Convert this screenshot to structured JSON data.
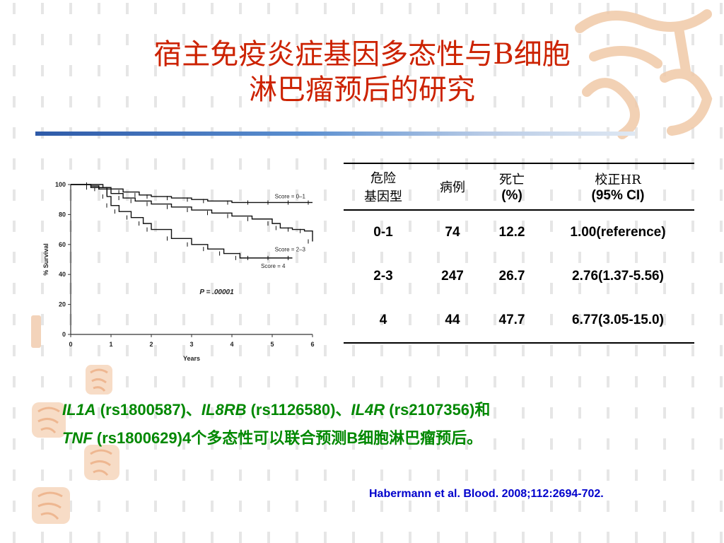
{
  "slide": {
    "title_line1": "宿主免疫炎症基因多态性与B细胞",
    "title_line2": "淋巴瘤预后的研究"
  },
  "chart_data": {
    "type": "line",
    "xlabel": "Years",
    "ylabel": "% Survival",
    "xlim": [
      0,
      6
    ],
    "ylim": [
      0,
      100
    ],
    "xticks": [
      0,
      1,
      2,
      3,
      4,
      5,
      6
    ],
    "yticks": [
      0,
      20,
      40,
      60,
      80,
      100
    ],
    "annotation": "P = .00001",
    "series": [
      {
        "name": "Score = 0–1",
        "x": [
          0,
          0.5,
          0.8,
          1.0,
          1.3,
          1.7,
          2.0,
          2.5,
          3.0,
          3.4,
          4.0,
          4.5,
          5.0,
          5.5,
          6.0
        ],
        "y": [
          100,
          100,
          98,
          97,
          95,
          93,
          92,
          91,
          90,
          89,
          88,
          88,
          88,
          88,
          88
        ]
      },
      {
        "name": "Score = 2–3",
        "x": [
          0,
          0.5,
          0.7,
          1.0,
          1.3,
          1.6,
          2.0,
          2.5,
          3.0,
          3.5,
          4.0,
          4.5,
          5.0,
          5.2,
          5.5,
          5.8,
          6.0
        ],
        "y": [
          100,
          99,
          97,
          94,
          91,
          89,
          87,
          85,
          83,
          81,
          79,
          77,
          74,
          71,
          70,
          69,
          62
        ]
      },
      {
        "name": "Score = 4",
        "x": [
          0,
          0.5,
          0.9,
          1.0,
          1.2,
          1.5,
          1.8,
          2.0,
          2.5,
          3.0,
          3.4,
          3.8,
          4.2,
          4.5,
          5.0,
          5.5
        ],
        "y": [
          100,
          98,
          92,
          86,
          82,
          78,
          74,
          70,
          64,
          60,
          57,
          54,
          51,
          51,
          51,
          51
        ]
      }
    ]
  },
  "table": {
    "headers": [
      {
        "line1": "危险",
        "line2": "基因型"
      },
      {
        "line1": "病例",
        "line2": ""
      },
      {
        "line1": "死亡",
        "line2": "(%)"
      },
      {
        "line1": "校正HR",
        "line2": "(95% CI)"
      }
    ],
    "rows": [
      [
        "0-1",
        "74",
        "12.2",
        "1.00(reference)"
      ],
      [
        "2-3",
        "247",
        "26.7",
        "2.76(1.37-5.56)"
      ],
      [
        "4",
        "44",
        "47.7",
        "6.77(3.05-15.0)"
      ]
    ]
  },
  "summary": {
    "gene1": "IL1A",
    "snp1": " (rs1800587)、",
    "gene2": "IL8RB",
    "snp2": " (rs1126580)、",
    "gene3": "IL4R",
    "snp3": " (rs2107356)和",
    "gene4": "TNF",
    "snp4": " (rs1800629)4个多态性可以联合预测B细胞淋巴瘤预后。"
  },
  "citation": "Habermann et al. Blood. 2008;112:2694-702."
}
